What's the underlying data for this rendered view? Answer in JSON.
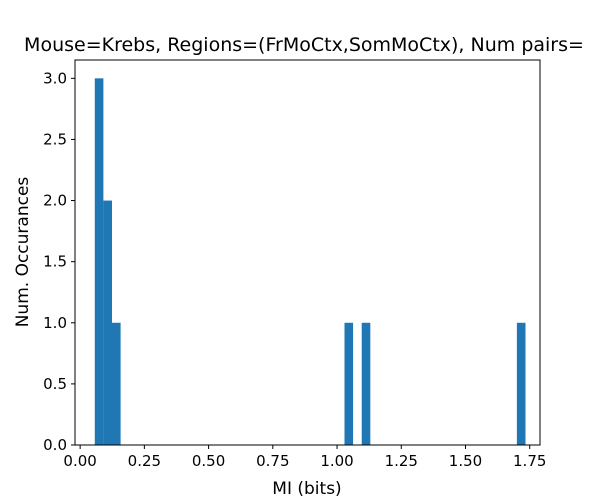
{
  "chart_data": {
    "type": "bar",
    "title": "Mouse=Krebs, Regions=(FrMoCtx,SomMoCtx), Num pairs=",
    "xlabel": "MI (bits)",
    "ylabel": "Num. Occurances",
    "xlim": [
      -0.02,
      1.79
    ],
    "ylim": [
      0.0,
      3.15
    ],
    "grid": false,
    "bar_color": "#1f77b4",
    "bin_width": 0.0335,
    "bins": [
      {
        "x": 0.057,
        "value": 3.0
      },
      {
        "x": 0.0905,
        "value": 2.0
      },
      {
        "x": 0.124,
        "value": 1.0
      },
      {
        "x": 1.029,
        "value": 1.0
      },
      {
        "x": 1.096,
        "value": 1.0
      },
      {
        "x": 1.7,
        "value": 1.0
      }
    ],
    "xticks": [
      "0.00",
      "0.25",
      "0.50",
      "0.75",
      "1.00",
      "1.25",
      "1.50",
      "1.75"
    ],
    "xtick_values": [
      0.0,
      0.25,
      0.5,
      0.75,
      1.0,
      1.25,
      1.5,
      1.75
    ],
    "yticks": [
      "0.0",
      "0.5",
      "1.0",
      "1.5",
      "2.0",
      "2.5",
      "3.0"
    ],
    "ytick_values": [
      0.0,
      0.5,
      1.0,
      1.5,
      2.0,
      2.5,
      3.0
    ]
  }
}
